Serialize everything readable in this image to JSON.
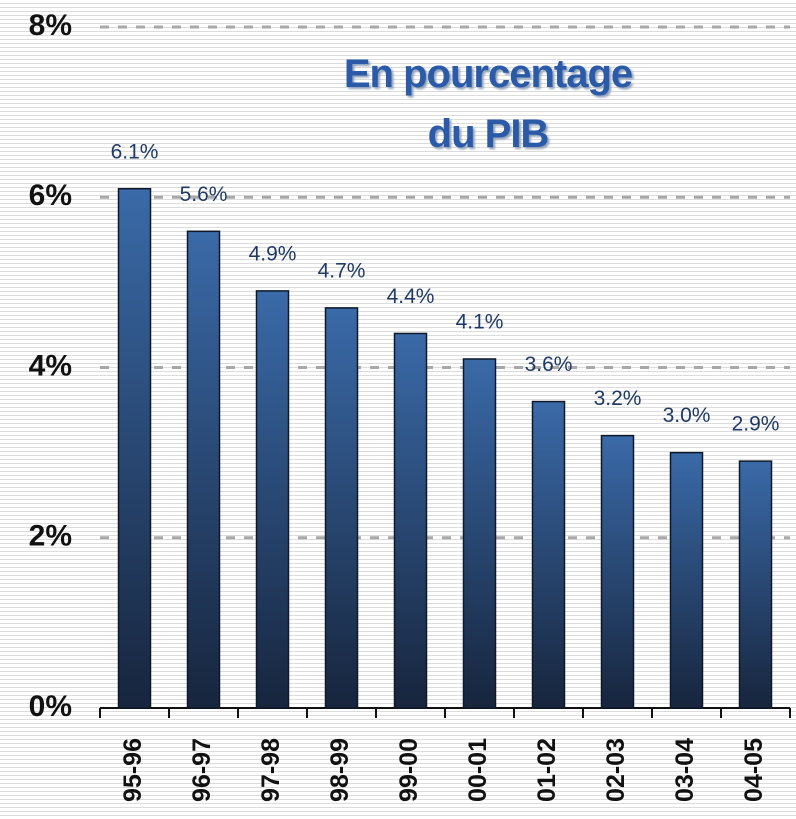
{
  "chart_data": {
    "type": "bar",
    "title": "En pourcentage du PIB",
    "categories": [
      "95-96",
      "96-97",
      "97-98",
      "98-99",
      "99-00",
      "00-01",
      "01-02",
      "02-03",
      "03-04",
      "04-05"
    ],
    "values": [
      6.1,
      5.6,
      4.9,
      4.7,
      4.4,
      4.1,
      3.6,
      3.2,
      3.0,
      2.9
    ],
    "value_labels": [
      "6.1%",
      "5.6%",
      "4.9%",
      "4.7%",
      "4.4%",
      "4.1%",
      "3.6%",
      "3.2%",
      "3.0%",
      "2.9%"
    ],
    "color": "#3a6aa8",
    "ylim": [
      0,
      8
    ],
    "yticks": [
      {
        "value": 0,
        "label": "0%"
      },
      {
        "value": 2,
        "label": "2%"
      },
      {
        "value": 4,
        "label": "4%"
      },
      {
        "value": 6,
        "label": "6%"
      },
      {
        "value": 8,
        "label": "8%"
      }
    ],
    "grid": true
  }
}
